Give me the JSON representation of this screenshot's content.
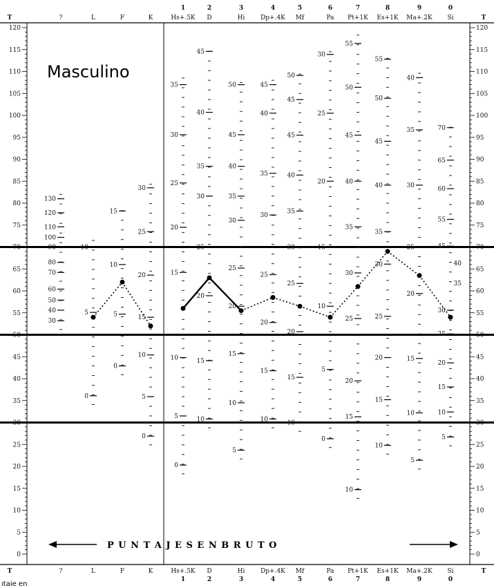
{
  "title": "Masculino",
  "banner": "P U N T A J E S   E N   B R U T O",
  "footer_fragment": "ıtaie en",
  "chart_data": {
    "type": "line",
    "axis": {
      "label_left": "T",
      "label_right": "T",
      "range": [
        0,
        120
      ],
      "ticks": [
        "120",
        "115",
        "110",
        "105",
        "100",
        "95",
        "90",
        "85",
        "80",
        "75",
        "70",
        "65",
        "60",
        "55",
        "50",
        "45",
        "40",
        "35",
        "30",
        "25",
        "20",
        "15",
        "10",
        "5",
        "0"
      ],
      "heavy_lines": [
        70,
        50,
        30
      ]
    },
    "columns": [
      {
        "num": "",
        "top": "?",
        "bottom": "?",
        "bottom_num": "",
        "labels": [
          {
            "t": 81,
            "text": "130"
          },
          {
            "t": 77.8,
            "text": "120"
          },
          {
            "t": 74.6,
            "text": "110"
          },
          {
            "t": 72.2,
            "text": "100"
          },
          {
            "t": 70,
            "text": "90"
          },
          {
            "t": 66.5,
            "text": "80"
          },
          {
            "t": 64.2,
            "text": "70"
          },
          {
            "t": 60.4,
            "text": "60"
          },
          {
            "t": 57.9,
            "text": "50"
          },
          {
            "t": 55.6,
            "text": "40"
          },
          {
            "t": 53.2,
            "text": "30"
          }
        ]
      },
      {
        "num": "",
        "top": "L",
        "bottom": "L",
        "bottom_num": "",
        "labels": [
          {
            "t": 70,
            "text": "10"
          },
          {
            "t": 55.1,
            "text": "5"
          },
          {
            "t": 36.1,
            "text": "0"
          }
        ]
      },
      {
        "num": "",
        "top": "F",
        "bottom": "F",
        "bottom_num": "",
        "labels": [
          {
            "t": 78.2,
            "text": "15"
          },
          {
            "t": 66,
            "text": "10"
          },
          {
            "t": 54.7,
            "text": "5"
          },
          {
            "t": 42.9,
            "text": "0"
          }
        ]
      },
      {
        "num": "",
        "top": "K",
        "bottom": "K",
        "bottom_num": "",
        "labels": [
          {
            "t": 83.5,
            "text": "30"
          },
          {
            "t": 73.5,
            "text": "25"
          },
          {
            "t": 63.6,
            "text": "20"
          },
          {
            "t": 54,
            "text": "15"
          },
          {
            "t": 45.4,
            "text": "10"
          },
          {
            "t": 35.9,
            "text": "5"
          },
          {
            "t": 26.9,
            "text": "0"
          }
        ]
      },
      {
        "num": "1",
        "top": "Hs+.5K",
        "bottom": "Hs+.5K",
        "bottom_num": "1",
        "labels": [
          {
            "t": 107,
            "text": "35"
          },
          {
            "t": 95.6,
            "text": "30"
          },
          {
            "t": 84.6,
            "text": "25"
          },
          {
            "t": 74.5,
            "text": "20"
          },
          {
            "t": 64.2,
            "text": "15"
          },
          {
            "t": 44.8,
            "text": "10"
          },
          {
            "t": 31.5,
            "text": "5"
          },
          {
            "t": 20.3,
            "text": "0"
          }
        ]
      },
      {
        "num": "2",
        "top": "D",
        "bottom": "D",
        "bottom_num": "2",
        "labels": [
          {
            "t": 114.6,
            "text": "45"
          },
          {
            "t": 100.7,
            "text": "40"
          },
          {
            "t": 88.4,
            "text": "35"
          },
          {
            "t": 81.6,
            "text": "30"
          },
          {
            "t": 70,
            "text": "25"
          },
          {
            "t": 58.9,
            "text": "20"
          },
          {
            "t": 44.1,
            "text": "15"
          },
          {
            "t": 30.8,
            "text": "10"
          }
        ]
      },
      {
        "num": "3",
        "top": "Hi",
        "bottom": "Hi",
        "bottom_num": "3",
        "labels": [
          {
            "t": 107,
            "text": "50"
          },
          {
            "t": 95.6,
            "text": "45"
          },
          {
            "t": 88.4,
            "text": "40"
          },
          {
            "t": 81.6,
            "text": "35"
          },
          {
            "t": 76.1,
            "text": "30"
          },
          {
            "t": 65.2,
            "text": "25"
          },
          {
            "t": 56.5,
            "text": "20"
          },
          {
            "t": 45.7,
            "text": "15"
          },
          {
            "t": 34.5,
            "text": "10"
          },
          {
            "t": 23.7,
            "text": "5"
          }
        ]
      },
      {
        "num": "4",
        "top": "Dp+.4K",
        "bottom": "Dp+.4K",
        "bottom_num": "4",
        "labels": [
          {
            "t": 107,
            "text": "45"
          },
          {
            "t": 100.5,
            "text": "40"
          },
          {
            "t": 86.8,
            "text": "35"
          },
          {
            "t": 77.3,
            "text": "30"
          },
          {
            "t": 63.7,
            "text": "25"
          },
          {
            "t": 52.8,
            "text": "20"
          },
          {
            "t": 41.8,
            "text": "15"
          },
          {
            "t": 30.8,
            "text": "10"
          }
        ]
      },
      {
        "num": "5",
        "top": "Mf",
        "bottom": "Mf",
        "bottom_num": "5",
        "labels": [
          {
            "t": 109.1,
            "text": "50"
          },
          {
            "t": 103.6,
            "text": "45"
          },
          {
            "t": 95.5,
            "text": "45"
          },
          {
            "t": 86.4,
            "text": "40"
          },
          {
            "t": 78.2,
            "text": "35"
          },
          {
            "t": 70,
            "text": "30"
          },
          {
            "t": 61.7,
            "text": "25"
          },
          {
            "t": 50.7,
            "text": "20"
          },
          {
            "t": 40.3,
            "text": "15"
          },
          {
            "t": 30,
            "text": "10"
          }
        ]
      },
      {
        "num": "6",
        "top": "Pa",
        "bottom": "Pa",
        "bottom_num": "6",
        "labels": [
          {
            "t": 113.9,
            "text": "30"
          },
          {
            "t": 100.5,
            "text": "25"
          },
          {
            "t": 85,
            "text": "20"
          },
          {
            "t": 70,
            "text": "15"
          },
          {
            "t": 56.5,
            "text": "10"
          },
          {
            "t": 42.1,
            "text": "5"
          },
          {
            "t": 26.3,
            "text": "0"
          }
        ]
      },
      {
        "num": "7",
        "top": "Pt+1K",
        "bottom": "Pt+1K",
        "bottom_num": "7",
        "labels": [
          {
            "t": 116.4,
            "text": "55"
          },
          {
            "t": 106.4,
            "text": "50"
          },
          {
            "t": 95.5,
            "text": "45"
          },
          {
            "t": 85,
            "text": "40"
          },
          {
            "t": 74.6,
            "text": "35"
          },
          {
            "t": 64.1,
            "text": "30"
          },
          {
            "t": 53.7,
            "text": "25"
          },
          {
            "t": 39.5,
            "text": "20"
          },
          {
            "t": 31.3,
            "text": "15"
          },
          {
            "t": 14.7,
            "text": "10"
          }
        ]
      },
      {
        "num": "8",
        "top": "Es+1K",
        "bottom": "Es+1K",
        "bottom_num": "8",
        "labels": [
          {
            "t": 112.8,
            "text": "55"
          },
          {
            "t": 103.9,
            "text": "50"
          },
          {
            "t": 94.1,
            "text": "45"
          },
          {
            "t": 84.1,
            "text": "40"
          },
          {
            "t": 73.5,
            "text": "35"
          },
          {
            "t": 66.1,
            "text": "30"
          },
          {
            "t": 54.2,
            "text": "25"
          },
          {
            "t": 44.8,
            "text": "20"
          },
          {
            "t": 35.2,
            "text": "15"
          },
          {
            "t": 24.8,
            "text": "10"
          }
        ]
      },
      {
        "num": "9",
        "top": "Ma+.2K",
        "bottom": "Ma+.2K",
        "bottom_num": "9",
        "labels": [
          {
            "t": 108.6,
            "text": "40"
          },
          {
            "t": 96.7,
            "text": "35"
          },
          {
            "t": 84.1,
            "text": "30"
          },
          {
            "t": 70,
            "text": "25"
          },
          {
            "t": 59.4,
            "text": "20"
          },
          {
            "t": 44.6,
            "text": "15"
          },
          {
            "t": 32.2,
            "text": "10"
          },
          {
            "t": 21.4,
            "text": "5"
          }
        ]
      },
      {
        "num": "0",
        "top": "Si",
        "bottom": "Si",
        "bottom_num": "0",
        "labels": [
          {
            "t": 97.2,
            "text": "70"
          },
          {
            "t": 89.8,
            "text": "65"
          },
          {
            "t": 83.3,
            "text": "60"
          },
          {
            "t": 76.3,
            "text": "55"
          },
          {
            "t": 70.2,
            "text": "45"
          },
          {
            "t": 55.6,
            "text": "30"
          },
          {
            "t": 50.2,
            "text": "25"
          },
          {
            "t": 43.6,
            "text": "20"
          },
          {
            "t": 38.1,
            "text": "15"
          },
          {
            "t": 32.4,
            "text": "10"
          },
          {
            "t": 26.7,
            "text": "5"
          }
        ]
      }
    ],
    "right_column_labels": [
      {
        "t": 66.3,
        "text": "40"
      },
      {
        "t": 61.7,
        "text": "35"
      }
    ],
    "profile_points": [
      {
        "col": "L",
        "t": 54
      },
      {
        "col": "F",
        "t": 62
      },
      {
        "col": "K",
        "t": 52
      },
      {
        "col": "Hs+.5K",
        "t": 56
      },
      {
        "col": "D",
        "t": 63
      },
      {
        "col": "Hi",
        "t": 55.5
      },
      {
        "col": "Dp+.4K",
        "t": 58.5
      },
      {
        "col": "Mf",
        "t": 56.5
      },
      {
        "col": "Pa",
        "t": 54
      },
      {
        "col": "Pt+1K",
        "t": 61
      },
      {
        "col": "Es+1K",
        "t": 69
      },
      {
        "col": "Ma+.2K",
        "t": 63.5
      },
      {
        "col": "Si",
        "t": 54
      }
    ],
    "solid_segments": [
      [
        3,
        4
      ],
      [
        4,
        5
      ]
    ]
  }
}
